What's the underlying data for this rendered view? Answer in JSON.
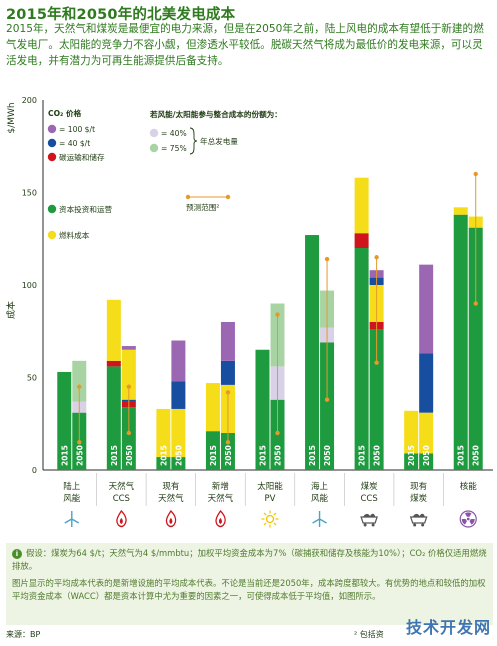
{
  "page": {
    "title": "2015年和2050年的北美发电成本",
    "intro": "2015年，天然气和煤炭是最便宜的电力来源，但是在2050年之前，陆上风电的成本有望低于新建的燃气发电厂。太阳能的竞争力不容小觑，但渗透水平较低。脱碳天然气将成为最低价的发电来源，可以灵活发电，并有潜力为可再生能源提供后备支持。",
    "note_icon": "i",
    "note1": "假设：煤炭为64 $/t；天然气为4 $/mmbtu；加权平均资金成本为7%（碳捕获和储存及核能为10%）；CO₂ 价格仅适用燃烧排放。",
    "note2": "图片显示的平均成本代表的是新增设施的平均成本代表。不论是当前还是2050年，成本跨度都较大。有优势的地点和较低的加权平均资金成本（WACC）都是资本计算中尤为重要的因素之一，可使得成本低于平均值，如图所示。",
    "source": "来源：BP",
    "footnote": "² 包括资",
    "watermark": "技术开发网"
  },
  "chart_data": {
    "type": "bar",
    "ylabel_unit": "$/MWh",
    "ylabel": "成本",
    "ylim": [
      0,
      200
    ],
    "yticks": [
      0,
      50,
      100,
      150,
      200
    ],
    "colors": {
      "capital": "#1e9a3f",
      "fuel": "#f5dd19",
      "co2_100": "#9b67b3",
      "co2_40": "#174ea0",
      "ccs": "#d0141c",
      "int40": "#d9d2e6",
      "int75": "#a8d4a4",
      "range": "#e49a2a"
    },
    "legend": {
      "co2_title": "CO₂ 价格",
      "co2_100": "= 100 $/t",
      "co2_40": "= 40 $/t",
      "ccs": "碳运输和储存",
      "capital": "资本投资和运营",
      "fuel": "燃料成本",
      "range": "预测范围²",
      "integration_title": "若风能/太阳能参与整合成本的份额为：",
      "int40": "= 40%",
      "int75": "= 75%",
      "integration_note": "年总发电量"
    },
    "categories": [
      {
        "label1": "陆上",
        "label2": "风能",
        "icon": "wind-turbine-icon",
        "bars": [
          {
            "year": "2015",
            "segments": [
              [
                "capital",
                53
              ]
            ]
          },
          {
            "year": "2050",
            "segments": [
              [
                "capital",
                31
              ],
              [
                "int40",
                6
              ],
              [
                "int75",
                22
              ]
            ],
            "range": [
              15,
              45
            ]
          }
        ]
      },
      {
        "label1": "天然气",
        "label2": "CCS",
        "icon": "flame-icon",
        "bars": [
          {
            "year": "2015",
            "segments": [
              [
                "capital",
                56
              ],
              [
                "ccs",
                3
              ],
              [
                "fuel",
                33
              ],
              [
                "co2_40",
                0
              ]
            ]
          },
          {
            "year": "2050",
            "segments": [
              [
                "capital",
                34
              ],
              [
                "ccs",
                3
              ],
              [
                "co2_40",
                1
              ],
              [
                "fuel",
                27
              ],
              [
                "co2_100",
                2
              ]
            ],
            "range": [
              20,
              45
            ]
          }
        ]
      },
      {
        "label1": "现有",
        "label2": "天然气",
        "icon": "flame-icon",
        "bars": [
          {
            "year": "2015",
            "segments": [
              [
                "capital",
                7
              ],
              [
                "fuel",
                26
              ]
            ]
          },
          {
            "year": "2050",
            "segments": [
              [
                "capital",
                7
              ],
              [
                "fuel",
                26
              ],
              [
                "co2_40",
                15
              ],
              [
                "co2_100",
                22
              ]
            ]
          }
        ]
      },
      {
        "label1": "新增",
        "label2": "天然气",
        "icon": "flame-icon",
        "bars": [
          {
            "year": "2015",
            "segments": [
              [
                "capital",
                21
              ],
              [
                "fuel",
                26
              ]
            ]
          },
          {
            "year": "2050",
            "segments": [
              [
                "capital",
                20
              ],
              [
                "fuel",
                26
              ],
              [
                "co2_40",
                13
              ],
              [
                "co2_100",
                21
              ]
            ],
            "range": [
              15,
              42
            ]
          }
        ]
      },
      {
        "label1": "太阳能",
        "label2": "PV",
        "icon": "sun-icon",
        "bars": [
          {
            "year": "2015",
            "segments": [
              [
                "capital",
                65
              ]
            ]
          },
          {
            "year": "2050",
            "segments": [
              [
                "capital",
                38
              ],
              [
                "int40",
                18
              ],
              [
                "int75",
                34
              ]
            ],
            "range": [
              20,
              84
            ]
          }
        ]
      },
      {
        "label1": "海上",
        "label2": "风能",
        "icon": "wind-turbine-icon",
        "bars": [
          {
            "year": "2015",
            "segments": [
              [
                "capital",
                127
              ]
            ]
          },
          {
            "year": "2050",
            "segments": [
              [
                "capital",
                69
              ],
              [
                "int40",
                8
              ],
              [
                "int75",
                20
              ]
            ],
            "range": [
              38,
              114
            ]
          }
        ]
      },
      {
        "label1": "煤炭",
        "label2": "CCS",
        "icon": "coal-cart-icon",
        "bars": [
          {
            "year": "2015",
            "segments": [
              [
                "capital",
                120
              ],
              [
                "ccs",
                8
              ],
              [
                "fuel",
                30
              ]
            ]
          },
          {
            "year": "2050",
            "segments": [
              [
                "capital",
                76
              ],
              [
                "ccs",
                4
              ],
              [
                "fuel",
                20
              ],
              [
                "co2_40",
                4
              ],
              [
                "co2_100",
                4
              ]
            ],
            "range": [
              58,
              115
            ]
          }
        ]
      },
      {
        "label1": "现有",
        "label2": "煤炭",
        "icon": "coal-cart-icon",
        "bars": [
          {
            "year": "2015",
            "segments": [
              [
                "capital",
                9
              ],
              [
                "fuel",
                23
              ]
            ]
          },
          {
            "year": "2050",
            "segments": [
              [
                "capital",
                9
              ],
              [
                "fuel",
                22
              ],
              [
                "co2_40",
                32
              ],
              [
                "co2_100",
                48
              ]
            ]
          }
        ]
      },
      {
        "label1": "核能",
        "label2": "",
        "icon": "radiation-icon",
        "bars": [
          {
            "year": "2015",
            "segments": [
              [
                "capital",
                138
              ],
              [
                "fuel",
                4
              ]
            ]
          },
          {
            "year": "2050",
            "segments": [
              [
                "capital",
                131
              ],
              [
                "fuel",
                6
              ]
            ],
            "range": [
              90,
              160
            ]
          }
        ]
      }
    ]
  }
}
